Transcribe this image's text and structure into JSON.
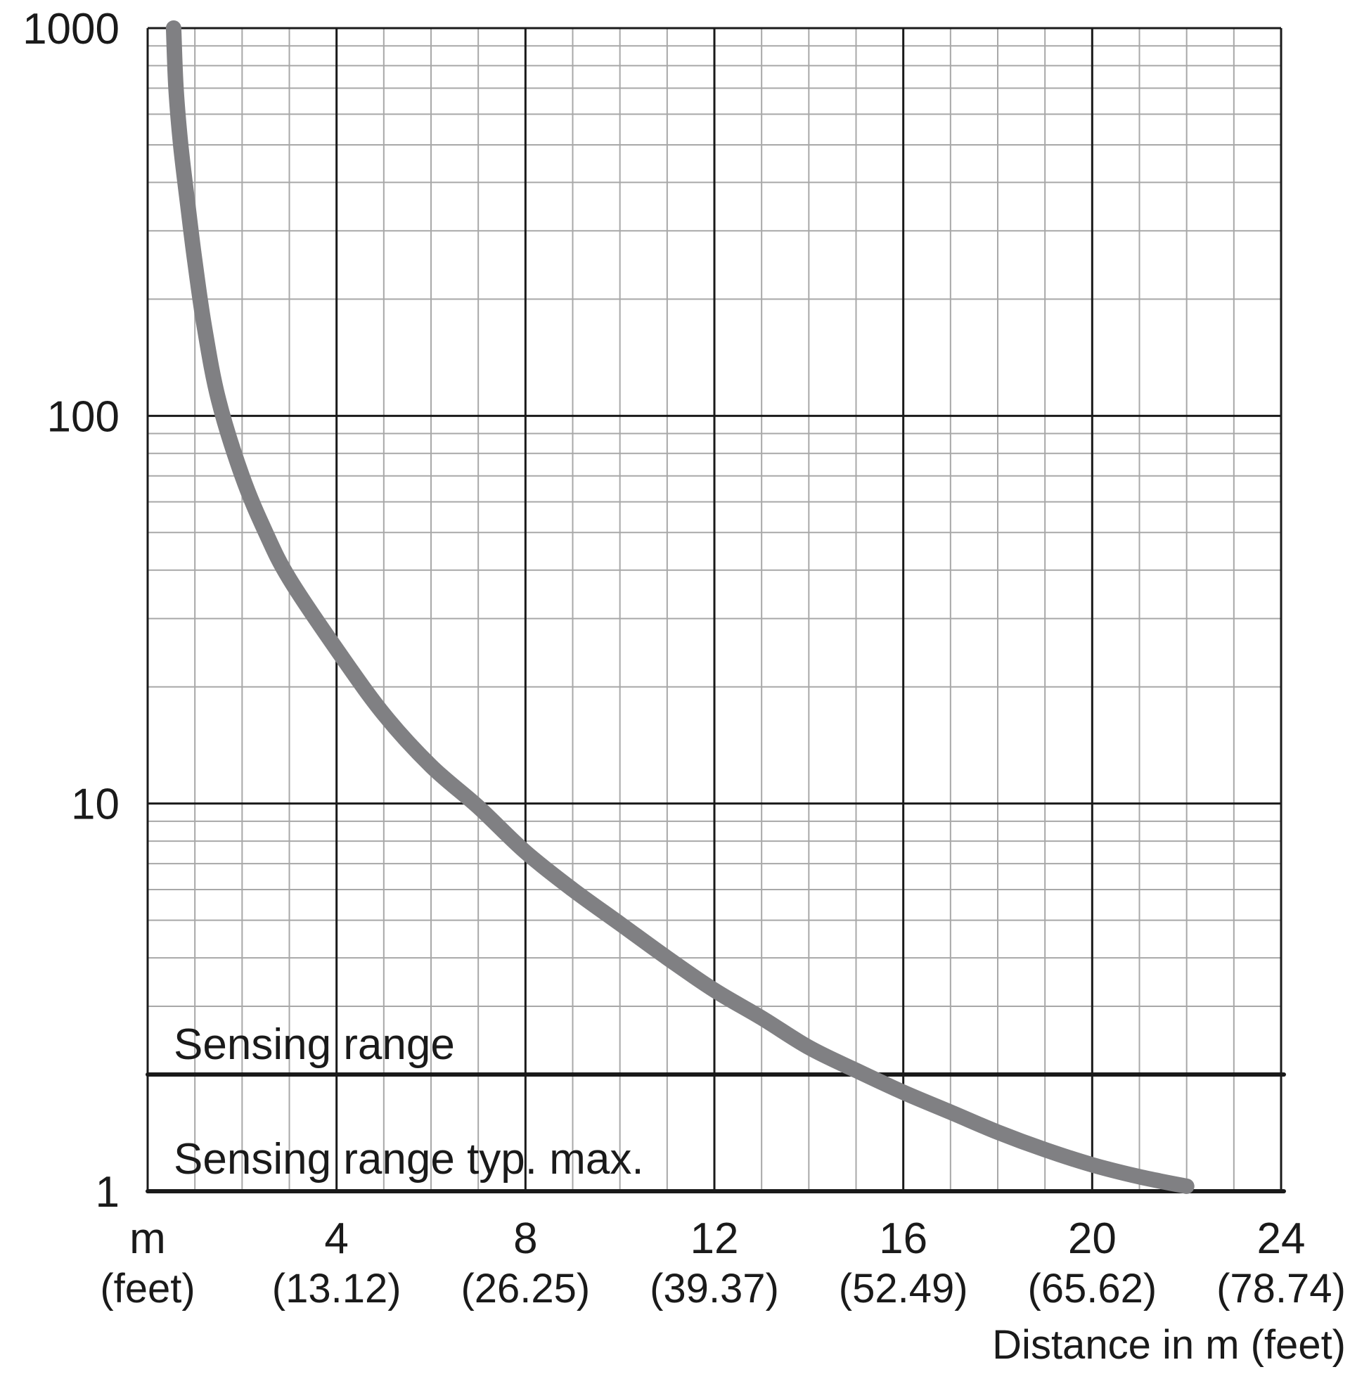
{
  "chart_data": {
    "type": "line",
    "y_scale": "log",
    "ylim": [
      1,
      1000
    ],
    "xlim": [
      0,
      24
    ],
    "y_ticks": [
      {
        "value": 1,
        "label": "1"
      },
      {
        "value": 10,
        "label": "10"
      },
      {
        "value": 100,
        "label": "100"
      },
      {
        "value": 1000,
        "label": "1000"
      }
    ],
    "x_ticks": [
      {
        "value": 0,
        "label": "m",
        "sublabel": "(feet)"
      },
      {
        "value": 4,
        "label": "4",
        "sublabel": "(13.12)"
      },
      {
        "value": 8,
        "label": "8",
        "sublabel": "(26.25)"
      },
      {
        "value": 12,
        "label": "12",
        "sublabel": "(39.37)"
      },
      {
        "value": 16,
        "label": "16",
        "sublabel": "(52.49)"
      },
      {
        "value": 20,
        "label": "20",
        "sublabel": "(65.62)"
      },
      {
        "value": 24,
        "label": "24",
        "sublabel": "(78.74)"
      }
    ],
    "xlabel": "Distance in m (feet)",
    "ylabel": "",
    "grid": true,
    "series": [
      {
        "color": "#808083",
        "points": [
          {
            "x": 0.55,
            "y": 1000
          },
          {
            "x": 0.6,
            "y": 700
          },
          {
            "x": 0.7,
            "y": 500
          },
          {
            "x": 0.85,
            "y": 350
          },
          {
            "x": 1.0,
            "y": 250
          },
          {
            "x": 1.2,
            "y": 170
          },
          {
            "x": 1.5,
            "y": 110
          },
          {
            "x": 2.0,
            "y": 70
          },
          {
            "x": 2.5,
            "y": 50
          },
          {
            "x": 3.0,
            "y": 38
          },
          {
            "x": 4.0,
            "y": 25
          },
          {
            "x": 5.0,
            "y": 17
          },
          {
            "x": 6.0,
            "y": 12.5
          },
          {
            "x": 7.0,
            "y": 9.8
          },
          {
            "x": 8.0,
            "y": 7.5
          },
          {
            "x": 9.0,
            "y": 6.0
          },
          {
            "x": 10.0,
            "y": 4.9
          },
          {
            "x": 11.0,
            "y": 4.0
          },
          {
            "x": 12.0,
            "y": 3.3
          },
          {
            "x": 13.0,
            "y": 2.8
          },
          {
            "x": 14.0,
            "y": 2.35
          },
          {
            "x": 15.0,
            "y": 2.05
          },
          {
            "x": 16.0,
            "y": 1.8
          },
          {
            "x": 17.0,
            "y": 1.6
          },
          {
            "x": 18.0,
            "y": 1.42
          },
          {
            "x": 19.0,
            "y": 1.28
          },
          {
            "x": 20.0,
            "y": 1.17
          },
          {
            "x": 21.0,
            "y": 1.09
          },
          {
            "x": 22.0,
            "y": 1.03
          }
        ]
      }
    ],
    "annotations": [
      {
        "text": "Sensing range",
        "y_line": 2.0
      },
      {
        "text": "Sensing range typ. max.",
        "y_line": 1
      }
    ],
    "colors": {
      "curve": "#808083",
      "major_grid": "#1a1a1a",
      "minor_grid": "#a8a8a8",
      "text": "#1a1a1a"
    }
  }
}
